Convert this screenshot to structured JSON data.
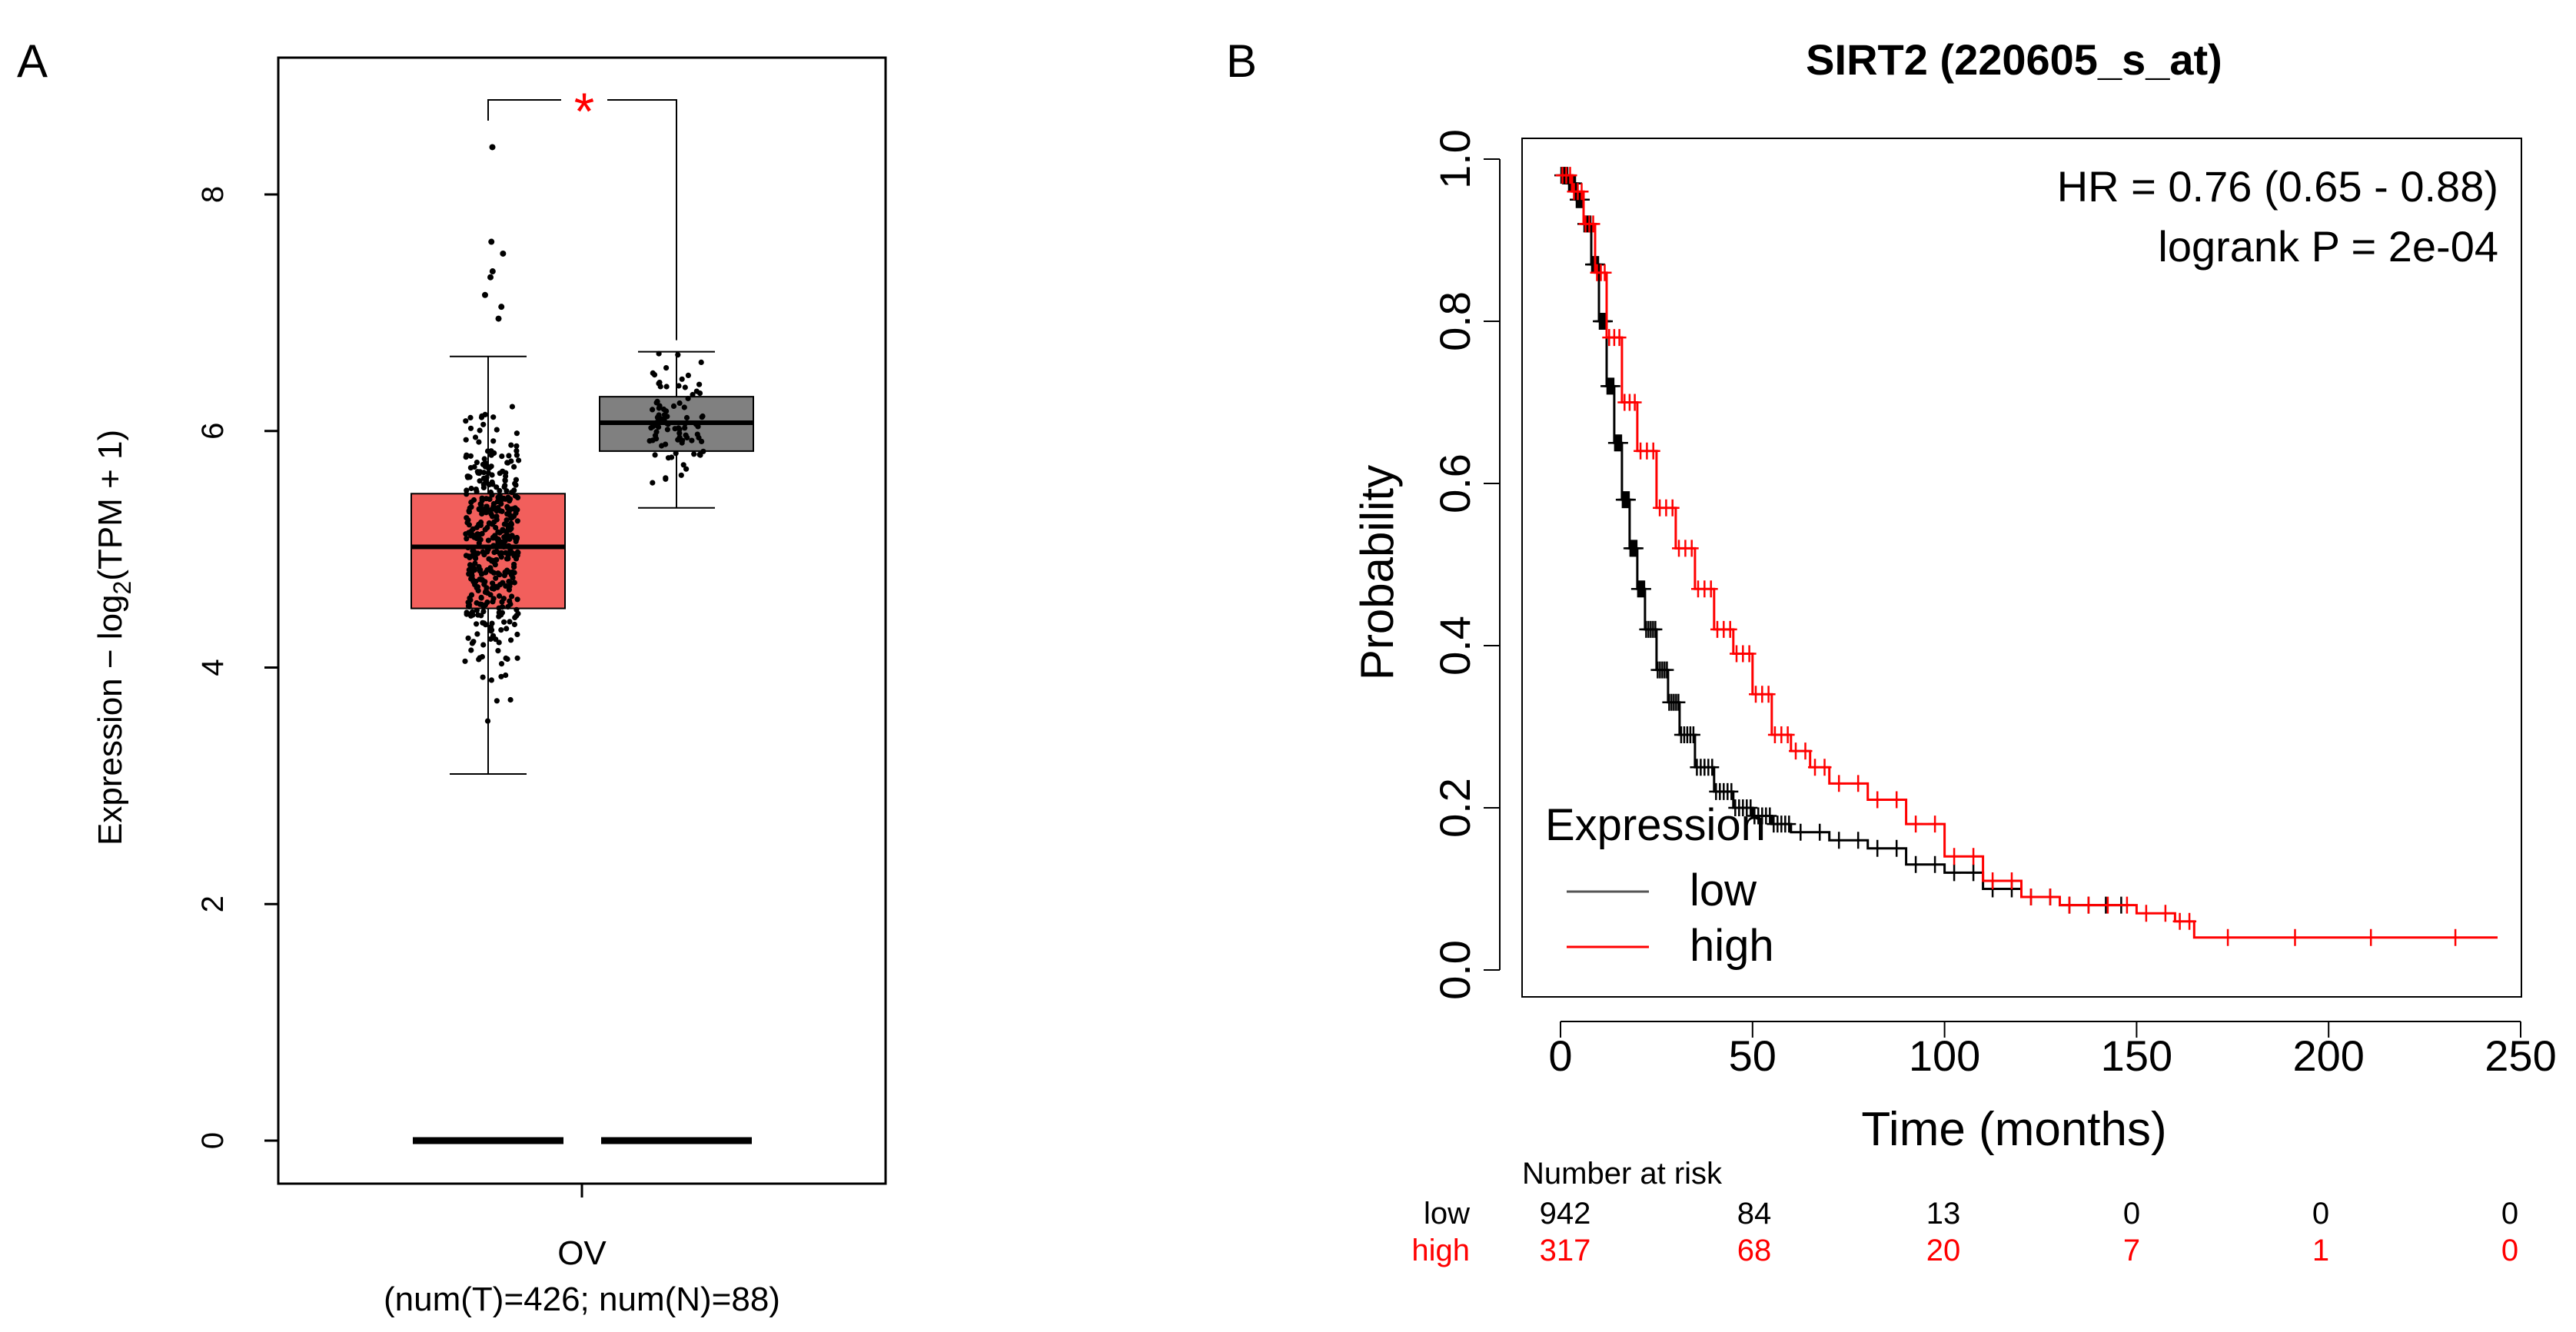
{
  "chart_data": [
    {
      "panel_label": "A",
      "type": "box",
      "ylabel_prefix": "Expression − log",
      "ylabel_sub": "2",
      "ylabel_suffix": "(TPM + 1)",
      "yticks": [
        "0",
        "2",
        "4",
        "6",
        "8"
      ],
      "ylim": [
        -0.3,
        9.0
      ],
      "category": "OV",
      "category_note": "(num(T)=426; num(N)=88)",
      "significance": "*",
      "colors": {
        "tumor": "#f25f5c",
        "normal": "#808080",
        "star": "#ff0000"
      },
      "boxes": [
        {
          "name": "Tumor",
          "whisker_low": 3.1,
          "q1": 4.5,
          "median": 5.02,
          "q3": 5.47,
          "whisker_high": 6.63,
          "n": 426
        },
        {
          "name": "Normal",
          "whisker_low": 5.35,
          "q1": 5.83,
          "median": 6.07,
          "q3": 6.29,
          "whisker_high": 6.67,
          "n": 88
        }
      ],
      "outliers": [
        8.4,
        7.6,
        7.5,
        7.35,
        7.3,
        7.15,
        7.05,
        6.95
      ]
    },
    {
      "panel_label": "B",
      "type": "line",
      "title": "SIRT2 (220605_s_at)",
      "xlabel": "Time (months)",
      "ylabel": "Probability",
      "xlim": [
        0,
        250
      ],
      "ylim": [
        0,
        1.0
      ],
      "xticks": [
        "0",
        "50",
        "100",
        "150",
        "200",
        "250"
      ],
      "yticks": [
        "0.0",
        "0.2",
        "0.4",
        "0.6",
        "0.8",
        "1.0"
      ],
      "hr_text": "HR = 0.76 (0.65 - 0.88)",
      "logrank_text": "logrank P = 2e-04",
      "legend": {
        "title": "Expression",
        "position": "bottom-left"
      },
      "series": [
        {
          "name": "low",
          "color": "#000000",
          "x": [
            0,
            2,
            4,
            6,
            8,
            10,
            12,
            14,
            16,
            18,
            20,
            22,
            25,
            28,
            31,
            35,
            40,
            45,
            50,
            55,
            60,
            70,
            80,
            90,
            100,
            110,
            120,
            130,
            140,
            148
          ],
          "y": [
            0.98,
            0.97,
            0.95,
            0.92,
            0.87,
            0.8,
            0.72,
            0.65,
            0.58,
            0.52,
            0.47,
            0.42,
            0.37,
            0.33,
            0.29,
            0.25,
            0.22,
            0.2,
            0.19,
            0.18,
            0.17,
            0.16,
            0.15,
            0.13,
            0.12,
            0.1,
            0.09,
            0.08,
            0.08,
            0.08
          ]
        },
        {
          "name": "high",
          "color": "#ff0000",
          "x": [
            0,
            3,
            6,
            9,
            12,
            16,
            20,
            25,
            30,
            35,
            40,
            45,
            50,
            55,
            60,
            65,
            70,
            80,
            90,
            100,
            110,
            120,
            130,
            140,
            150,
            160,
            165,
            200,
            244
          ],
          "y": [
            0.98,
            0.96,
            0.92,
            0.86,
            0.78,
            0.7,
            0.64,
            0.57,
            0.52,
            0.47,
            0.42,
            0.39,
            0.34,
            0.29,
            0.27,
            0.25,
            0.23,
            0.21,
            0.18,
            0.14,
            0.11,
            0.09,
            0.08,
            0.08,
            0.07,
            0.06,
            0.04,
            0.04,
            0.04
          ]
        }
      ],
      "risk_table": {
        "header": "Number at risk",
        "rows": [
          {
            "label": "low",
            "values": [
              "942",
              "84",
              "13",
              "0",
              "0",
              "0"
            ]
          },
          {
            "label": "high",
            "values": [
              "317",
              "68",
              "20",
              "7",
              "1",
              "0"
            ]
          }
        ]
      }
    }
  ]
}
